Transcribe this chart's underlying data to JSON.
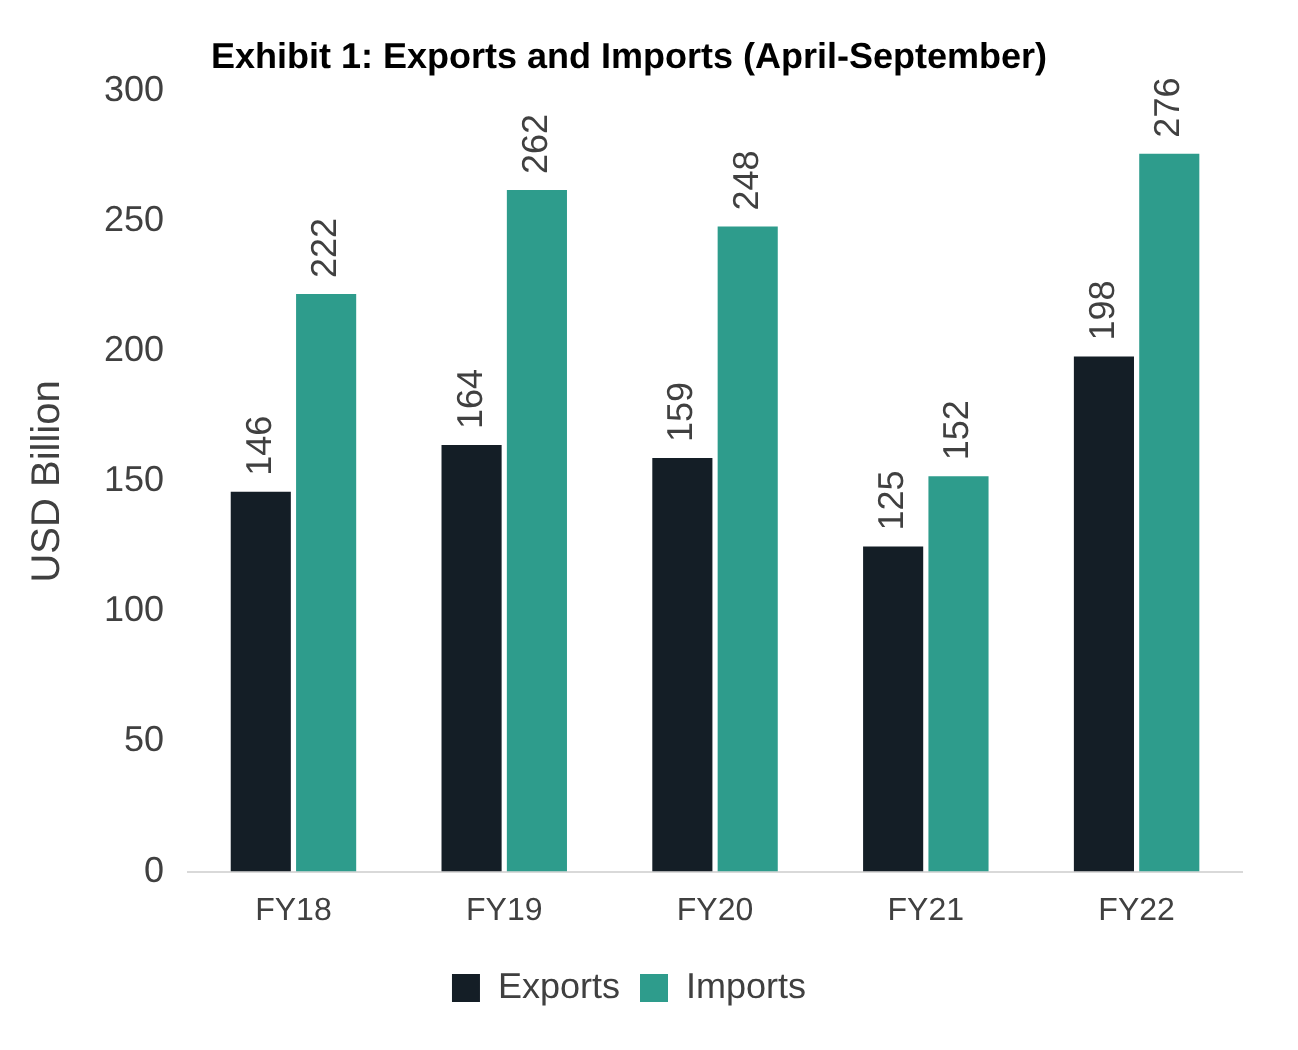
{
  "chart_data": {
    "type": "bar",
    "title": "Exhibit 1: Exports and Imports (April-September)",
    "ylabel": "USD Billion",
    "categories": [
      "FY18",
      "FY19",
      "FY20",
      "FY21",
      "FY22"
    ],
    "series": [
      {
        "name": "Exports",
        "color": "#141e26",
        "values": [
          146,
          164,
          159,
          125,
          198
        ]
      },
      {
        "name": "Imports",
        "color": "#2e9c8c",
        "values": [
          222,
          262,
          248,
          152,
          276
        ]
      }
    ],
    "ylim": [
      0,
      300
    ],
    "yticks": [
      0,
      50,
      100,
      150,
      200,
      250,
      300
    ],
    "grid": false,
    "legend": "bottom",
    "data_labels": true
  }
}
